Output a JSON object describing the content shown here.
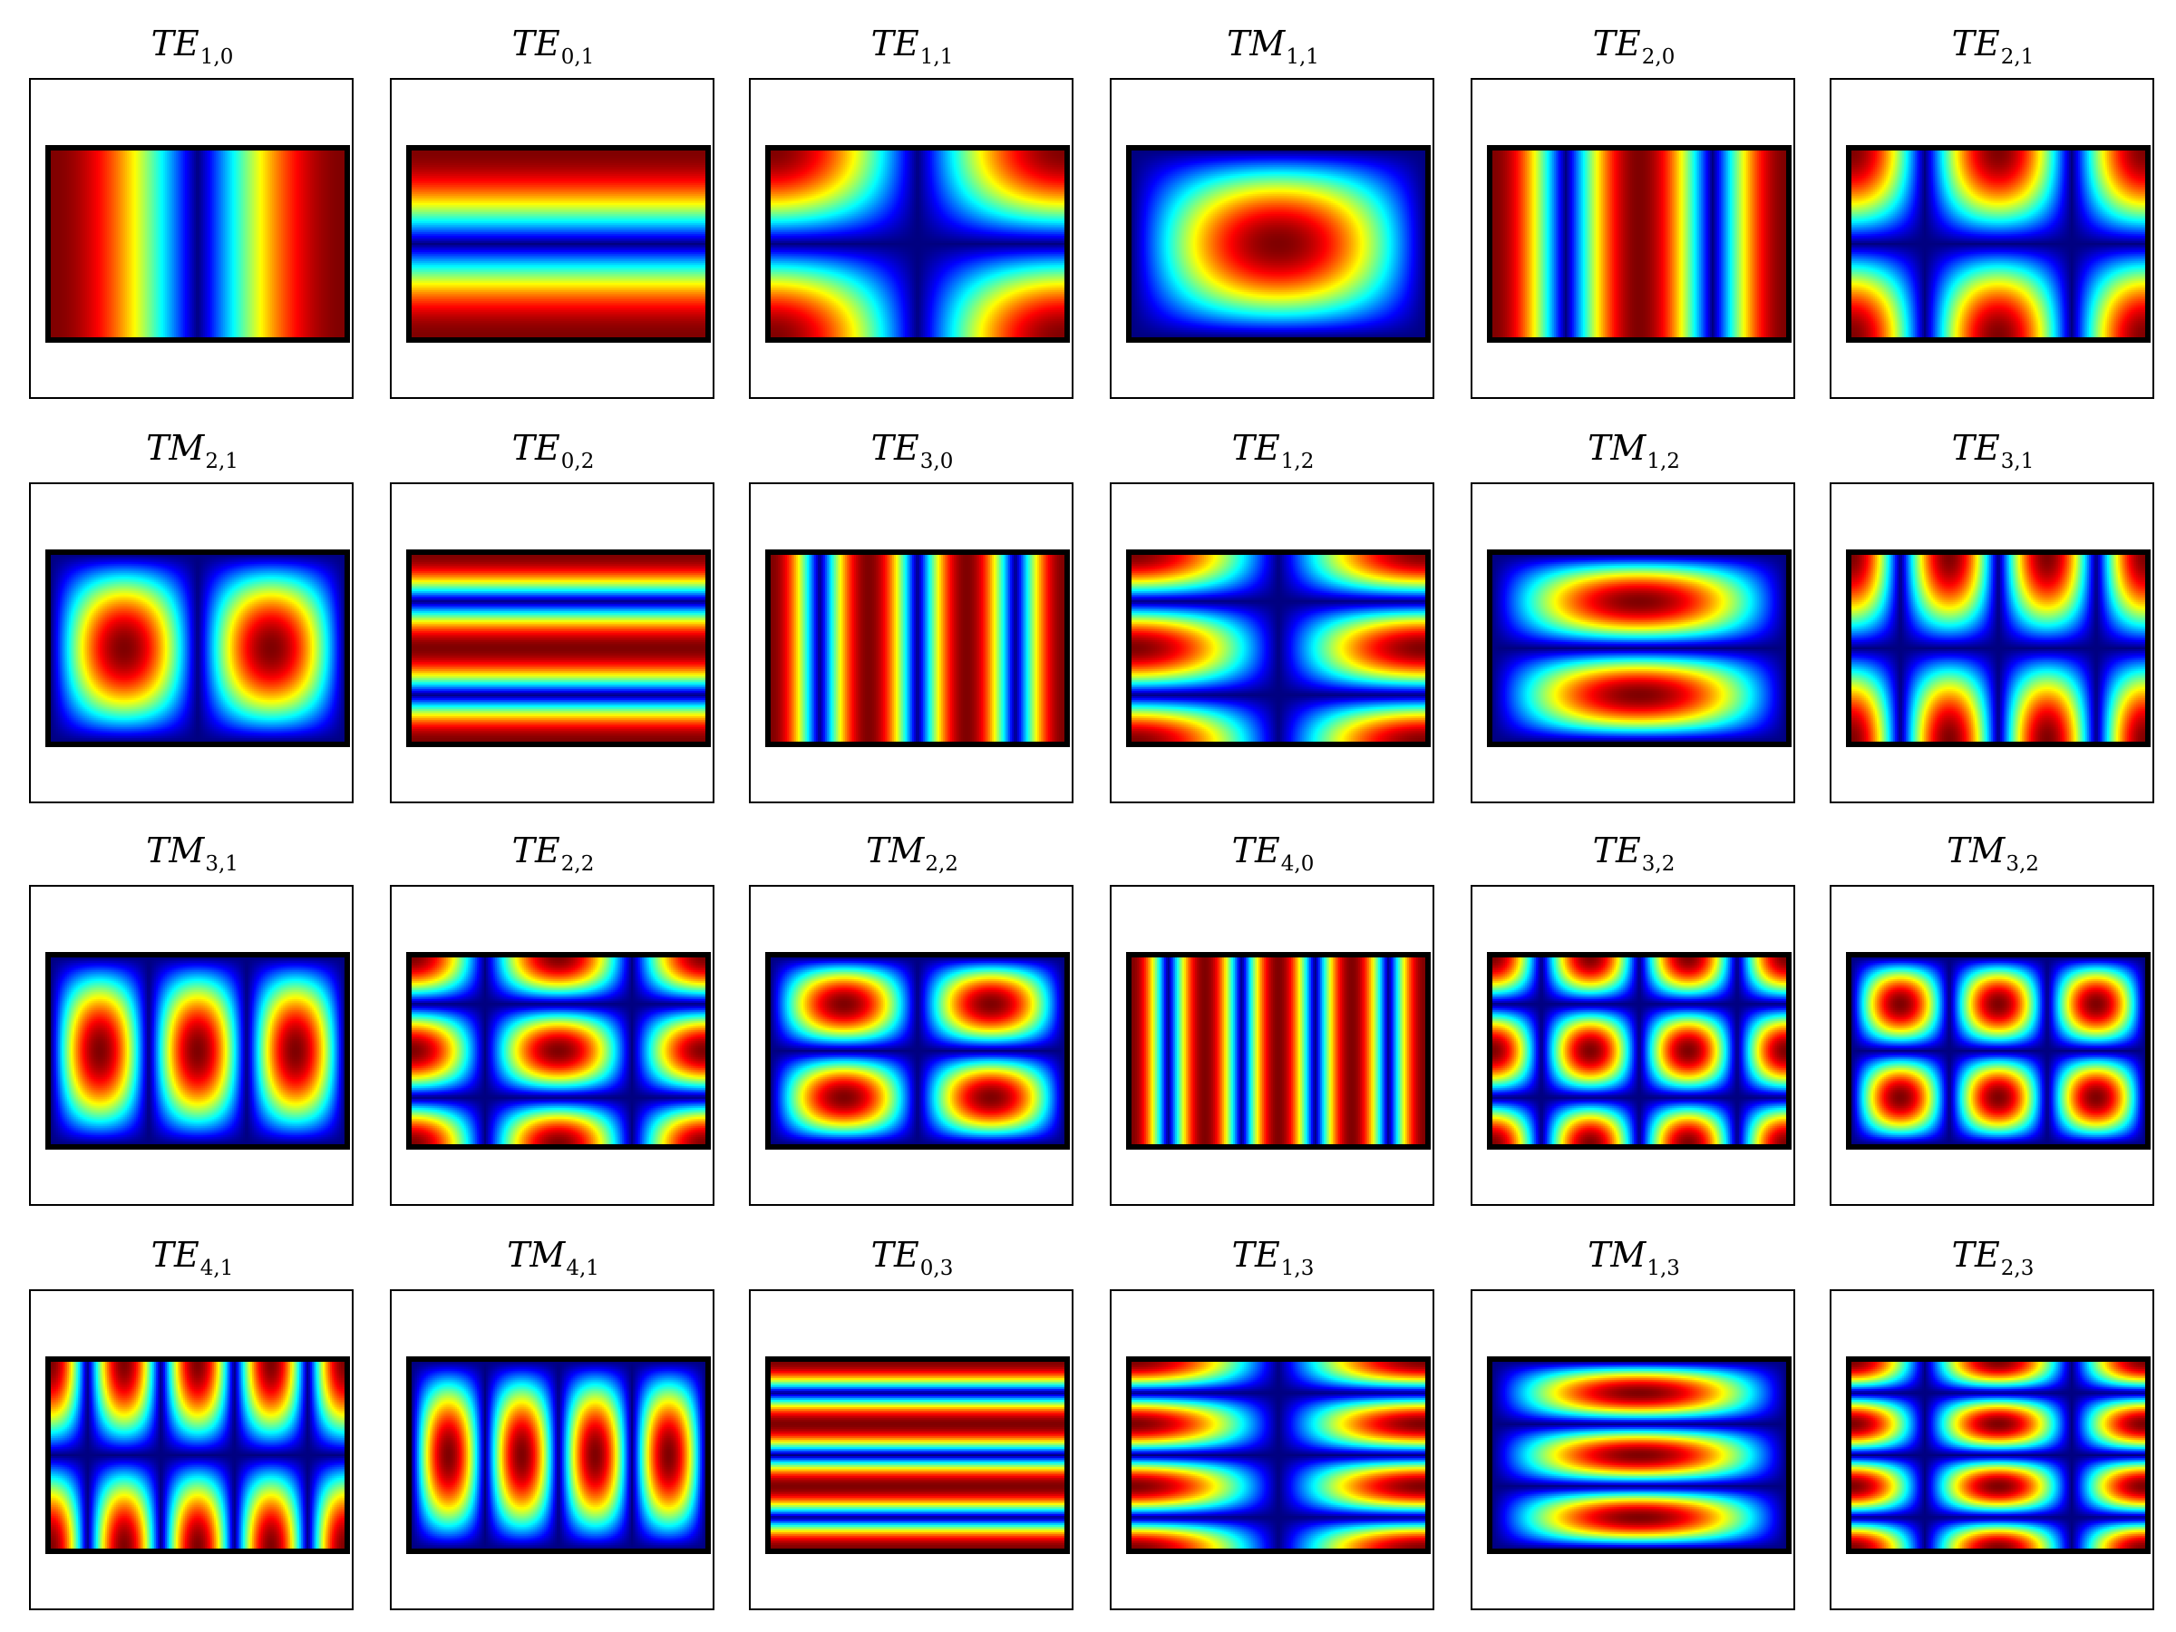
{
  "figure": {
    "colormap": "jet",
    "modes": [
      {
        "label": "TE",
        "m": 1,
        "n": 0,
        "index": "1,0"
      },
      {
        "label": "TE",
        "m": 0,
        "n": 1,
        "index": "0,1"
      },
      {
        "label": "TE",
        "m": 1,
        "n": 1,
        "index": "1,1"
      },
      {
        "label": "TM",
        "m": 1,
        "n": 1,
        "index": "1,1"
      },
      {
        "label": "TE",
        "m": 2,
        "n": 0,
        "index": "2,0"
      },
      {
        "label": "TE",
        "m": 2,
        "n": 1,
        "index": "2,1"
      },
      {
        "label": "TM",
        "m": 2,
        "n": 1,
        "index": "2,1"
      },
      {
        "label": "TE",
        "m": 0,
        "n": 2,
        "index": "0,2"
      },
      {
        "label": "TE",
        "m": 3,
        "n": 0,
        "index": "3,0"
      },
      {
        "label": "TE",
        "m": 1,
        "n": 2,
        "index": "1,2"
      },
      {
        "label": "TM",
        "m": 1,
        "n": 2,
        "index": "1,2"
      },
      {
        "label": "TE",
        "m": 3,
        "n": 1,
        "index": "3,1"
      },
      {
        "label": "TM",
        "m": 3,
        "n": 1,
        "index": "3,1"
      },
      {
        "label": "TE",
        "m": 2,
        "n": 2,
        "index": "2,2"
      },
      {
        "label": "TM",
        "m": 2,
        "n": 2,
        "index": "2,2"
      },
      {
        "label": "TE",
        "m": 4,
        "n": 0,
        "index": "4,0"
      },
      {
        "label": "TE",
        "m": 3,
        "n": 2,
        "index": "3,2"
      },
      {
        "label": "TM",
        "m": 3,
        "n": 2,
        "index": "3,2"
      },
      {
        "label": "TE",
        "m": 4,
        "n": 1,
        "index": "4,1"
      },
      {
        "label": "TM",
        "m": 4,
        "n": 1,
        "index": "4,1"
      },
      {
        "label": "TE",
        "m": 0,
        "n": 3,
        "index": "0,3"
      },
      {
        "label": "TE",
        "m": 1,
        "n": 3,
        "index": "1,3"
      },
      {
        "label": "TM",
        "m": 1,
        "n": 3,
        "index": "1,3"
      },
      {
        "label": "TE",
        "m": 2,
        "n": 3,
        "index": "2,3"
      }
    ]
  }
}
